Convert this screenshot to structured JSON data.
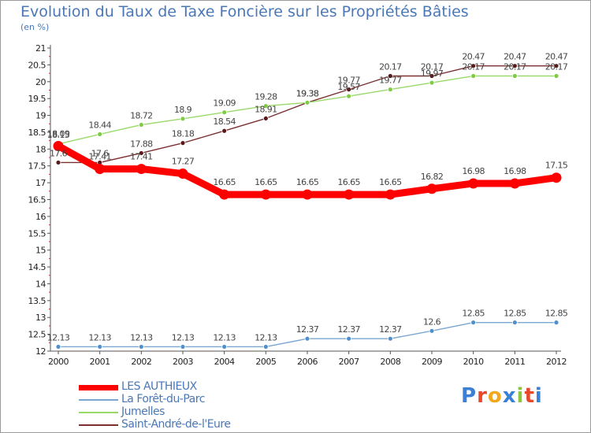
{
  "header": {
    "title": "Evolution du Taux de Taxe Foncière sur les Propriétés Bâties",
    "unit": "(en %)"
  },
  "brand": {
    "text": "Proxiti",
    "letters": [
      "P",
      "r",
      "o",
      "x",
      "i",
      "t",
      "i"
    ],
    "colors": [
      "#3b7fd6",
      "#e8472b",
      "#f2a81d",
      "#3b7fd6",
      "#8cc63e",
      "#e8472b",
      "#3b7fd6"
    ]
  },
  "chart_data": {
    "type": "line",
    "title": "Evolution du Taux de Taxe Foncière sur les Propriétés Bâties",
    "ylabel": "(en %)",
    "xlabel": "",
    "ylim": [
      12,
      21
    ],
    "yticks": [
      "12",
      "12.5",
      "13",
      "13.5",
      "14",
      "14.5",
      "15",
      "15.5",
      "16",
      "16.5",
      "17",
      "17.5",
      "18",
      "18.5",
      "19",
      "19.5",
      "20",
      "20.5",
      "21"
    ],
    "x": [
      "2000",
      "2001",
      "2002",
      "2003",
      "2004",
      "2005",
      "2006",
      "2007",
      "2008",
      "2009",
      "2010",
      "2011",
      "2012"
    ],
    "grid": false,
    "legend_position": "bottom-left",
    "series": [
      {
        "name": "LES AUTHIEUX",
        "color": "#ff0000",
        "values": [
          18.09,
          17.41,
          17.41,
          17.27,
          16.65,
          16.65,
          16.65,
          16.65,
          16.65,
          16.82,
          16.98,
          16.98,
          17.15
        ],
        "labels": [
          "18.09",
          "17.41",
          "17.41",
          "17.27",
          "16.65",
          "16.65",
          "16.65",
          "16.65",
          "16.65",
          "16.82",
          "16.98",
          "16.98",
          "17.15"
        ]
      },
      {
        "name": "La Forêt-du-Parc",
        "color": "#7aa6d2",
        "values": [
          12.13,
          12.13,
          12.13,
          12.13,
          12.13,
          12.13,
          12.37,
          12.37,
          12.37,
          12.6,
          12.85,
          12.85,
          12.85
        ],
        "labels": [
          "12.13",
          "12.13",
          "12.13",
          "12.13",
          "12.13",
          "12.13",
          "12.37",
          "12.37",
          "12.37",
          "12.6",
          "12.85",
          "12.85",
          "12.85"
        ]
      },
      {
        "name": "Jumelles",
        "color": "#99d96a",
        "values": [
          18.15,
          18.44,
          18.72,
          18.9,
          19.09,
          19.28,
          19.38,
          19.57,
          19.77,
          19.97,
          20.17,
          20.17,
          20.17
        ],
        "labels": [
          "18.15",
          "18.44",
          "18.72",
          "18.9",
          "19.09",
          "19.28",
          "19.38",
          "19.57",
          "19.77",
          "19.97",
          "20.17",
          "20.17",
          "20.17"
        ]
      },
      {
        "name": "Saint-André-de-l'Eure",
        "color": "#7a3030",
        "values": [
          17.6,
          17.6,
          17.88,
          18.18,
          18.54,
          18.91,
          19.38,
          19.77,
          20.17,
          20.17,
          20.47,
          20.47,
          20.47
        ],
        "labels": [
          "17.6",
          "17.6",
          "17.88",
          "18.18",
          "18.54",
          "18.91",
          "19.38",
          "19.77",
          "20.17",
          "20.17",
          "20.47",
          "20.47",
          "20.47"
        ]
      }
    ]
  }
}
